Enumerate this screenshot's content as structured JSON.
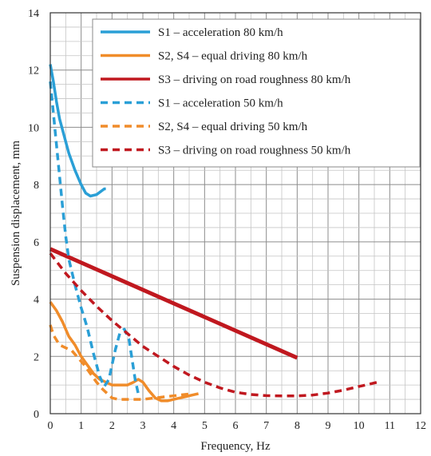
{
  "chart_data": {
    "type": "line",
    "xlabel": "Frequency, Hz",
    "ylabel": "Suspension displacement, mm",
    "xlim": [
      0,
      12
    ],
    "ylim": [
      0,
      14
    ],
    "xticks": [
      "0",
      "1",
      "2",
      "3",
      "4",
      "5",
      "6",
      "7",
      "8",
      "9",
      "10",
      "11",
      "12"
    ],
    "yticks": [
      "0",
      "2",
      "4",
      "6",
      "8",
      "10",
      "12",
      "14"
    ],
    "grid": true,
    "minor_grid_x": 0.5,
    "minor_grid_y": 0.5,
    "legend_position": "top-right",
    "series": [
      {
        "name": "S1 – acceleration 80 km/h",
        "color": "#2a9fd6",
        "dash": "solid",
        "points": [
          [
            0,
            12.2
          ],
          [
            0.1,
            11.6
          ],
          [
            0.2,
            10.9
          ],
          [
            0.3,
            10.3
          ],
          [
            0.45,
            9.7
          ],
          [
            0.6,
            9.1
          ],
          [
            0.8,
            8.5
          ],
          [
            1.0,
            8.0
          ],
          [
            1.15,
            7.7
          ],
          [
            1.3,
            7.6
          ],
          [
            1.5,
            7.65
          ],
          [
            1.75,
            7.85
          ],
          [
            1.8,
            7.85
          ]
        ]
      },
      {
        "name": "S2, S4 – equal driving 80 km/h",
        "color": "#f08c2a",
        "dash": "solid",
        "points": [
          [
            0,
            3.9
          ],
          [
            0.2,
            3.6
          ],
          [
            0.4,
            3.2
          ],
          [
            0.6,
            2.7
          ],
          [
            0.8,
            2.4
          ],
          [
            1.0,
            2.0
          ],
          [
            1.2,
            1.7
          ],
          [
            1.4,
            1.4
          ],
          [
            1.6,
            1.2
          ],
          [
            1.8,
            1.1
          ],
          [
            2.0,
            1.0
          ],
          [
            2.3,
            1.0
          ],
          [
            2.5,
            1.0
          ],
          [
            2.7,
            1.1
          ],
          [
            2.85,
            1.2
          ],
          [
            3.0,
            1.1
          ],
          [
            3.2,
            0.8
          ],
          [
            3.4,
            0.55
          ],
          [
            3.6,
            0.45
          ],
          [
            3.8,
            0.45
          ],
          [
            4.0,
            0.5
          ],
          [
            4.2,
            0.55
          ],
          [
            4.4,
            0.6
          ],
          [
            4.6,
            0.65
          ],
          [
            4.8,
            0.7
          ]
        ]
      },
      {
        "name": "S3 – driving on road roughness 80 km/h",
        "color": "#c0181f",
        "dash": "solid",
        "points": [
          [
            0,
            5.75
          ],
          [
            8,
            1.95
          ]
        ]
      },
      {
        "name": "S1 – acceleration 50 km/h",
        "color": "#2a9fd6",
        "dash": "dashed",
        "points": [
          [
            0,
            11.6
          ],
          [
            0.1,
            10.5
          ],
          [
            0.2,
            9.4
          ],
          [
            0.3,
            8.3
          ],
          [
            0.4,
            7.2
          ],
          [
            0.5,
            6.2
          ],
          [
            0.6,
            5.4
          ],
          [
            0.8,
            4.5
          ],
          [
            1.0,
            3.7
          ],
          [
            1.2,
            3.0
          ],
          [
            1.4,
            2.1
          ],
          [
            1.6,
            1.3
          ],
          [
            1.75,
            0.95
          ],
          [
            1.9,
            1.2
          ],
          [
            2.1,
            2.2
          ],
          [
            2.25,
            2.8
          ],
          [
            2.4,
            2.95
          ],
          [
            2.55,
            2.6
          ],
          [
            2.65,
            1.9
          ],
          [
            2.75,
            1.2
          ],
          [
            2.85,
            0.7
          ],
          [
            2.9,
            0.6
          ]
        ]
      },
      {
        "name": "S2, S4 – equal driving 50 km/h",
        "color": "#f08c2a",
        "dash": "dashed",
        "points": [
          [
            0,
            3.1
          ],
          [
            0.1,
            2.75
          ],
          [
            0.3,
            2.4
          ],
          [
            0.5,
            2.3
          ],
          [
            0.7,
            2.2
          ],
          [
            0.9,
            1.95
          ],
          [
            1.1,
            1.7
          ],
          [
            1.3,
            1.4
          ],
          [
            1.5,
            1.1
          ],
          [
            1.7,
            0.85
          ],
          [
            1.9,
            0.65
          ],
          [
            2.0,
            0.55
          ],
          [
            2.2,
            0.5
          ],
          [
            2.5,
            0.5
          ],
          [
            3.0,
            0.5
          ],
          [
            3.4,
            0.55
          ],
          [
            3.8,
            0.6
          ],
          [
            4.2,
            0.65
          ],
          [
            4.6,
            0.7
          ]
        ]
      },
      {
        "name": "S3 – driving on road roughness 50 km/h",
        "color": "#c0181f",
        "dash": "dashed",
        "points": [
          [
            0,
            5.6
          ],
          [
            0.5,
            4.9
          ],
          [
            1,
            4.3
          ],
          [
            1.5,
            3.75
          ],
          [
            2,
            3.25
          ],
          [
            2.5,
            2.8
          ],
          [
            3,
            2.35
          ],
          [
            3.5,
            2.0
          ],
          [
            4,
            1.65
          ],
          [
            4.5,
            1.35
          ],
          [
            5,
            1.1
          ],
          [
            5.5,
            0.9
          ],
          [
            6,
            0.75
          ],
          [
            6.5,
            0.67
          ],
          [
            7,
            0.63
          ],
          [
            7.5,
            0.62
          ],
          [
            8,
            0.62
          ],
          [
            8.5,
            0.65
          ],
          [
            9,
            0.72
          ],
          [
            9.5,
            0.82
          ],
          [
            10,
            0.95
          ],
          [
            10.3,
            1.02
          ],
          [
            10.6,
            1.1
          ]
        ]
      }
    ]
  }
}
